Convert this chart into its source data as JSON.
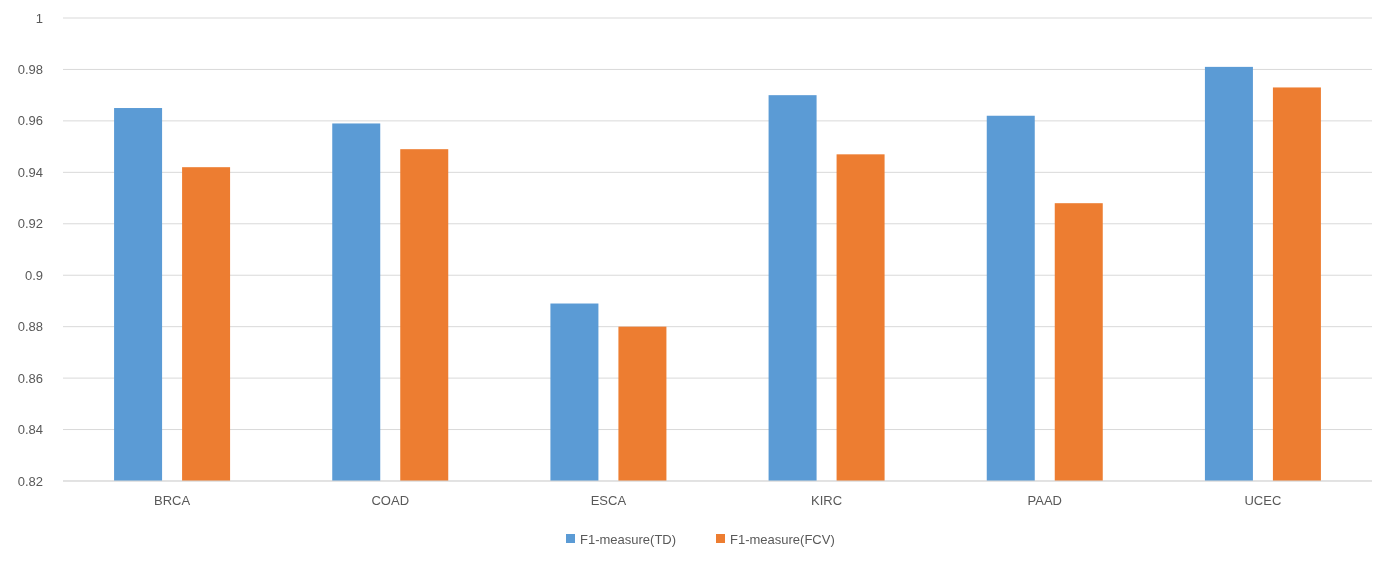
{
  "chart_data": {
    "type": "bar",
    "categories": [
      "BRCA",
      "COAD",
      "ESCA",
      "KIRC",
      "PAAD",
      "UCEC"
    ],
    "series": [
      {
        "name": "F1-measure(TD)",
        "color": "#5b9bd5",
        "values": [
          0.965,
          0.959,
          0.889,
          0.97,
          0.962,
          0.981
        ]
      },
      {
        "name": "F1-measure(FCV)",
        "color": "#ed7d31",
        "values": [
          0.942,
          0.949,
          0.88,
          0.947,
          0.928,
          0.973
        ]
      }
    ],
    "ylim": [
      0.82,
      1
    ],
    "yticks": [
      0.82,
      0.84,
      0.86,
      0.88,
      0.9,
      0.92,
      0.94,
      0.96,
      0.98,
      1
    ],
    "grid": "y",
    "legend": "bottom"
  }
}
